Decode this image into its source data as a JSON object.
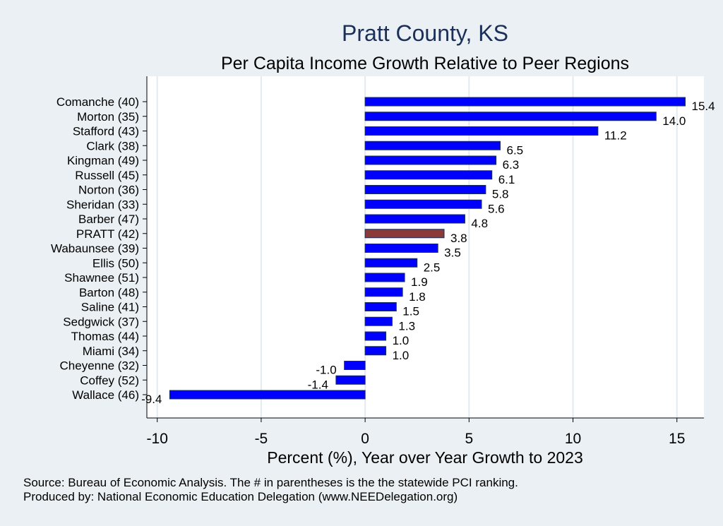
{
  "chart_data": {
    "type": "bar",
    "orientation": "horizontal",
    "title": "Pratt County, KS",
    "subtitle": "Per Capita Income Growth Relative to Peer Regions",
    "xlabel": "Percent (%), Year over Year Growth to 2023",
    "ylabel": "",
    "xlim": [
      -10.5,
      16.3
    ],
    "xticks": [
      -10,
      -5,
      0,
      5,
      10,
      15
    ],
    "grid": true,
    "categories": [
      "Comanche (40)",
      "Morton (35)",
      "Stafford (43)",
      "Clark (38)",
      "Kingman (49)",
      "Russell (45)",
      "Norton (36)",
      "Sheridan (33)",
      "Barber (47)",
      "PRATT (42)",
      "Wabaunsee (39)",
      "Ellis (50)",
      "Shawnee (51)",
      "Barton (48)",
      "Saline (41)",
      "Sedgwick (37)",
      "Thomas (44)",
      "Miami (34)",
      "Cheyenne (32)",
      "Coffey (52)",
      "Wallace (46)"
    ],
    "values": [
      15.4,
      14.0,
      11.2,
      6.5,
      6.3,
      6.1,
      5.8,
      5.6,
      4.8,
      3.8,
      3.5,
      2.5,
      1.9,
      1.8,
      1.5,
      1.3,
      1.0,
      1.0,
      -1.0,
      -1.4,
      -9.4
    ],
    "highlight": "PRATT (42)",
    "colors": {
      "bar": "#0000ff",
      "highlight": "#8b3a3a",
      "bar_edge": "#1a2f5a",
      "grid": "#e3ebef",
      "axis": "#000000",
      "title": "#1a2f5a"
    }
  },
  "footer": {
    "source": "Source: Bureau of Economic Analysis. The # in parentheses is the the statewide PCI ranking.",
    "produced": "Produced by: National Economic Education Delegation (www.NEEDelegation.org)"
  }
}
